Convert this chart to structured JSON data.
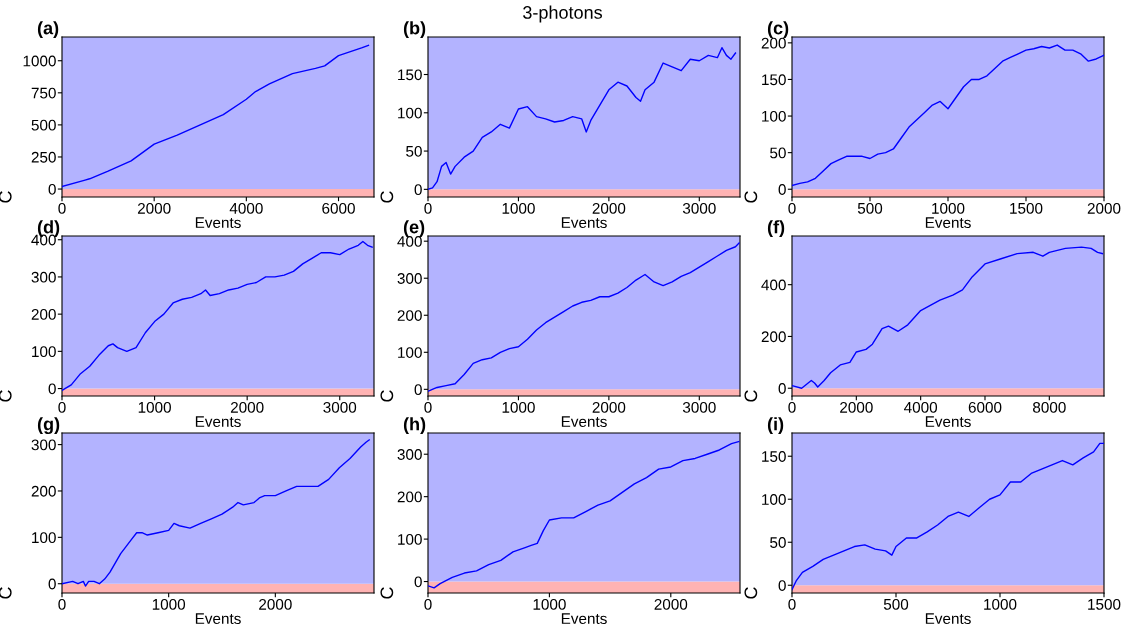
{
  "chart_data": [
    {
      "type": "line",
      "title": "(a)",
      "xlabel": "Events",
      "ylabel": "C",
      "xlim": [
        0,
        6770
      ],
      "ylim": [
        -62,
        1185
      ],
      "xticks": [
        0,
        2000,
        4000,
        6000
      ],
      "yticks": [
        0,
        250,
        500,
        750,
        1000
      ],
      "grid": false,
      "legend": false,
      "bands": [
        {
          "axis": "y",
          "from": -62,
          "to": 0,
          "color": "#ffb3b3"
        },
        {
          "axis": "y",
          "from": 0,
          "to": 1185,
          "color": "#b3b3ff"
        }
      ],
      "series": [
        {
          "color": "#0000ff",
          "x": [
            0,
            500,
            600,
            1000,
            1500,
            2000,
            2500,
            3000,
            3500,
            4000,
            4200,
            4500,
            5000,
            5500,
            5700,
            6000,
            6500,
            6650
          ],
          "values": [
            20,
            70,
            80,
            140,
            220,
            350,
            420,
            500,
            580,
            700,
            760,
            820,
            900,
            940,
            960,
            1040,
            1100,
            1120
          ]
        }
      ]
    },
    {
      "type": "line",
      "title": "(b)",
      "xlabel": "Events",
      "ylabel": "C",
      "xlim": [
        0,
        3450
      ],
      "ylim": [
        -10,
        199
      ],
      "xticks": [
        0,
        1000,
        2000,
        3000
      ],
      "yticks": [
        0,
        50,
        100,
        150
      ],
      "grid": false,
      "legend": false,
      "annotations": [
        "3-photons"
      ],
      "bands": [
        {
          "axis": "y",
          "from": -10,
          "to": 0,
          "color": "#ffb3b3"
        },
        {
          "axis": "y",
          "from": 0,
          "to": 199,
          "color": "#b3b3ff"
        }
      ],
      "series": [
        {
          "color": "#0000ff",
          "x": [
            0,
            50,
            100,
            150,
            200,
            250,
            300,
            400,
            500,
            600,
            700,
            800,
            900,
            1000,
            1100,
            1200,
            1300,
            1400,
            1500,
            1600,
            1700,
            1750,
            1800,
            1900,
            2000,
            2100,
            2200,
            2300,
            2350,
            2400,
            2500,
            2600,
            2700,
            2800,
            2900,
            3000,
            3100,
            3200,
            3250,
            3300,
            3350,
            3400
          ],
          "values": [
            0,
            2,
            10,
            30,
            35,
            20,
            30,
            42,
            50,
            68,
            75,
            85,
            80,
            105,
            108,
            95,
            92,
            88,
            90,
            95,
            92,
            75,
            90,
            110,
            130,
            140,
            135,
            120,
            115,
            130,
            140,
            165,
            160,
            155,
            170,
            168,
            175,
            172,
            185,
            175,
            170,
            178
          ]
        }
      ]
    },
    {
      "type": "line",
      "title": "(c)",
      "xlabel": "Events",
      "ylabel": "C",
      "xlim": [
        0,
        2000
      ],
      "ylim": [
        -10.6,
        208
      ],
      "xticks": [
        0,
        500,
        1000,
        1500,
        2000
      ],
      "yticks": [
        0,
        50,
        100,
        150,
        200
      ],
      "grid": false,
      "legend": false,
      "bands": [
        {
          "axis": "y",
          "from": -10.6,
          "to": 0,
          "color": "#ffb3b3"
        },
        {
          "axis": "y",
          "from": 0,
          "to": 208,
          "color": "#b3b3ff"
        }
      ],
      "series": [
        {
          "color": "#0000ff",
          "x": [
            0,
            50,
            100,
            150,
            200,
            250,
            300,
            350,
            400,
            450,
            500,
            550,
            600,
            650,
            700,
            750,
            800,
            850,
            900,
            950,
            1000,
            1050,
            1100,
            1150,
            1200,
            1250,
            1300,
            1350,
            1400,
            1450,
            1500,
            1550,
            1600,
            1650,
            1700,
            1750,
            1800,
            1850,
            1900,
            1950,
            2000
          ],
          "values": [
            5,
            8,
            10,
            15,
            25,
            35,
            40,
            45,
            45,
            45,
            42,
            48,
            50,
            55,
            70,
            85,
            95,
            105,
            115,
            120,
            110,
            125,
            140,
            150,
            150,
            155,
            165,
            175,
            180,
            185,
            190,
            192,
            195,
            193,
            197,
            190,
            190,
            185,
            175,
            178,
            183
          ]
        }
      ]
    },
    {
      "type": "line",
      "title": "(d)",
      "xlabel": "Events",
      "ylabel": "C",
      "xlim": [
        0,
        3370
      ],
      "ylim": [
        -20,
        410
      ],
      "xticks": [
        0,
        1000,
        2000,
        3000
      ],
      "yticks": [
        0,
        100,
        200,
        300,
        400
      ],
      "grid": false,
      "legend": false,
      "bands": [
        {
          "axis": "y",
          "from": -20,
          "to": 0,
          "color": "#ffb3b3"
        },
        {
          "axis": "y",
          "from": 0,
          "to": 410,
          "color": "#b3b3ff"
        }
      ],
      "series": [
        {
          "color": "#0000ff",
          "x": [
            0,
            100,
            200,
            300,
            400,
            500,
            550,
            600,
            700,
            800,
            900,
            1000,
            1100,
            1200,
            1300,
            1400,
            1500,
            1550,
            1600,
            1700,
            1800,
            1900,
            2000,
            2100,
            2200,
            2300,
            2400,
            2500,
            2600,
            2700,
            2800,
            2900,
            3000,
            3100,
            3200,
            3250,
            3300,
            3350
          ],
          "values": [
            -5,
            10,
            40,
            60,
            90,
            115,
            120,
            110,
            100,
            110,
            150,
            180,
            200,
            230,
            240,
            245,
            255,
            265,
            250,
            255,
            265,
            270,
            280,
            285,
            300,
            300,
            305,
            315,
            335,
            350,
            365,
            365,
            360,
            375,
            385,
            395,
            385,
            380
          ]
        }
      ]
    },
    {
      "type": "line",
      "title": "(e)",
      "xlabel": "Events",
      "ylabel": "C",
      "xlim": [
        0,
        3450
      ],
      "ylim": [
        -18,
        414
      ],
      "xticks": [
        0,
        1000,
        2000,
        3000
      ],
      "yticks": [
        0,
        100,
        200,
        300,
        400
      ],
      "grid": false,
      "legend": false,
      "bands": [
        {
          "axis": "y",
          "from": -18,
          "to": 0,
          "color": "#ffb3b3"
        },
        {
          "axis": "y",
          "from": 0,
          "to": 414,
          "color": "#b3b3ff"
        }
      ],
      "series": [
        {
          "color": "#0000ff",
          "x": [
            0,
            100,
            200,
            300,
            400,
            500,
            600,
            700,
            800,
            900,
            1000,
            1100,
            1200,
            1300,
            1400,
            1500,
            1600,
            1700,
            1800,
            1900,
            2000,
            2100,
            2200,
            2300,
            2400,
            2450,
            2500,
            2600,
            2700,
            2800,
            2900,
            3000,
            3100,
            3200,
            3300,
            3400,
            3440
          ],
          "values": [
            -5,
            5,
            10,
            15,
            40,
            70,
            80,
            85,
            100,
            110,
            115,
            135,
            160,
            180,
            195,
            210,
            225,
            235,
            240,
            250,
            250,
            260,
            275,
            295,
            310,
            300,
            290,
            280,
            290,
            305,
            315,
            330,
            345,
            360,
            375,
            385,
            395
          ]
        }
      ]
    },
    {
      "type": "line",
      "title": "(f)",
      "xlabel": "Events",
      "ylabel": "C",
      "xlim": [
        0,
        9700
      ],
      "ylim": [
        -30,
        588
      ],
      "xticks": [
        0,
        2000,
        4000,
        6000,
        8000
      ],
      "yticks": [
        0,
        200,
        400
      ],
      "grid": false,
      "legend": false,
      "bands": [
        {
          "axis": "y",
          "from": -30,
          "to": 0,
          "color": "#ffb3b3"
        },
        {
          "axis": "y",
          "from": 0,
          "to": 588,
          "color": "#b3b3ff"
        }
      ],
      "series": [
        {
          "color": "#0000ff",
          "x": [
            0,
            300,
            600,
            700,
            800,
            1000,
            1200,
            1500,
            1800,
            2000,
            2300,
            2500,
            2800,
            3000,
            3300,
            3600,
            4000,
            4300,
            4600,
            5000,
            5300,
            5600,
            6000,
            6500,
            7000,
            7500,
            7800,
            8000,
            8500,
            9000,
            9300,
            9500,
            9650
          ],
          "values": [
            10,
            0,
            30,
            20,
            5,
            30,
            60,
            90,
            100,
            140,
            150,
            170,
            230,
            240,
            220,
            245,
            300,
            320,
            340,
            360,
            380,
            430,
            480,
            500,
            520,
            525,
            510,
            525,
            540,
            545,
            540,
            525,
            520
          ]
        }
      ]
    },
    {
      "type": "line",
      "title": "(g)",
      "xlabel": "Events",
      "ylabel": "C",
      "xlim": [
        0,
        2925
      ],
      "ylim": [
        -20,
        325
      ],
      "xticks": [
        0,
        1000,
        2000
      ],
      "yticks": [
        0,
        100,
        200,
        300
      ],
      "grid": false,
      "legend": false,
      "bands": [
        {
          "axis": "y",
          "from": -20,
          "to": 0,
          "color": "#ffb3b3"
        },
        {
          "axis": "y",
          "from": 0,
          "to": 325,
          "color": "#b3b3ff"
        }
      ],
      "series": [
        {
          "color": "#0000ff",
          "x": [
            0,
            100,
            150,
            200,
            220,
            250,
            300,
            350,
            400,
            450,
            500,
            550,
            600,
            650,
            700,
            750,
            800,
            900,
            1000,
            1050,
            1100,
            1200,
            1300,
            1400,
            1500,
            1600,
            1650,
            1700,
            1800,
            1850,
            1900,
            2000,
            2100,
            2200,
            2300,
            2400,
            2500,
            2600,
            2700,
            2800,
            2850,
            2880
          ],
          "values": [
            0,
            5,
            0,
            5,
            -5,
            5,
            5,
            0,
            10,
            25,
            45,
            65,
            80,
            95,
            110,
            110,
            105,
            110,
            115,
            130,
            125,
            120,
            130,
            140,
            150,
            165,
            175,
            170,
            175,
            185,
            190,
            190,
            200,
            210,
            210,
            210,
            225,
            250,
            270,
            295,
            305,
            310
          ]
        }
      ]
    },
    {
      "type": "line",
      "title": "(h)",
      "xlabel": "Events",
      "ylabel": "C",
      "xlim": [
        0,
        2570
      ],
      "ylim": [
        -27,
        350
      ],
      "xticks": [
        0,
        1000,
        2000
      ],
      "yticks": [
        0,
        100,
        200,
        300
      ],
      "grid": false,
      "legend": false,
      "bands": [
        {
          "axis": "y",
          "from": -27,
          "to": 0,
          "color": "#ffb3b3"
        },
        {
          "axis": "y",
          "from": 0,
          "to": 350,
          "color": "#b3b3ff"
        }
      ],
      "series": [
        {
          "color": "#0000ff",
          "x": [
            0,
            50,
            100,
            200,
            300,
            400,
            500,
            600,
            700,
            800,
            850,
            900,
            950,
            1000,
            1100,
            1200,
            1300,
            1400,
            1500,
            1600,
            1700,
            1800,
            1900,
            2000,
            2100,
            2200,
            2300,
            2400,
            2500,
            2560
          ],
          "values": [
            -10,
            -15,
            -5,
            10,
            20,
            25,
            40,
            50,
            70,
            80,
            85,
            90,
            120,
            145,
            150,
            150,
            165,
            180,
            190,
            210,
            230,
            245,
            265,
            270,
            285,
            290,
            300,
            310,
            325,
            330
          ]
        }
      ]
    },
    {
      "type": "line",
      "title": "(i)",
      "xlabel": "Events",
      "ylabel": "C",
      "xlim": [
        0,
        1500
      ],
      "ylim": [
        -9,
        177
      ],
      "xticks": [
        0,
        500,
        1000,
        1500
      ],
      "yticks": [
        0,
        50,
        100,
        150
      ],
      "grid": false,
      "legend": false,
      "bands": [
        {
          "axis": "y",
          "from": -9,
          "to": 0,
          "color": "#ffb3b3"
        },
        {
          "axis": "y",
          "from": 0,
          "to": 177,
          "color": "#b3b3ff"
        }
      ],
      "series": [
        {
          "color": "#0000ff",
          "x": [
            0,
            20,
            50,
            100,
            150,
            200,
            250,
            300,
            350,
            400,
            450,
            480,
            500,
            550,
            600,
            650,
            700,
            750,
            800,
            850,
            900,
            950,
            1000,
            1050,
            1100,
            1150,
            1200,
            1250,
            1300,
            1350,
            1400,
            1450,
            1480,
            1500
          ],
          "values": [
            -5,
            5,
            15,
            22,
            30,
            35,
            40,
            45,
            47,
            42,
            40,
            35,
            45,
            55,
            55,
            62,
            70,
            80,
            85,
            80,
            90,
            100,
            105,
            120,
            120,
            130,
            135,
            140,
            145,
            140,
            148,
            155,
            165,
            165
          ]
        }
      ]
    }
  ]
}
